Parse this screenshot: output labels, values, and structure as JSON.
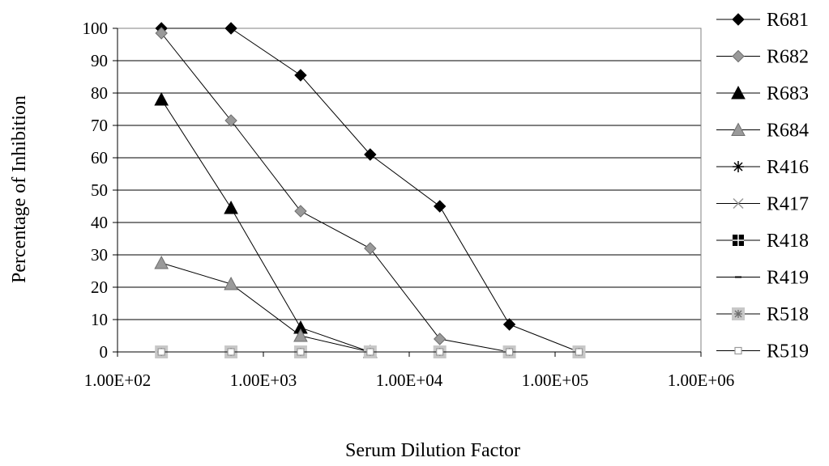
{
  "chart_data": {
    "type": "scatter",
    "title": "",
    "xlabel": "Serum Dilution Factor",
    "ylabel": "Percentage of Inhibition",
    "xscale": "log",
    "xlim": [
      100,
      1000000
    ],
    "ylim": [
      0,
      100
    ],
    "xticks": [
      "1.00E+02",
      "1.00E+03",
      "1.00E+04",
      "1.00E+05",
      "1.00E+06"
    ],
    "yticks": [
      "0",
      "10",
      "20",
      "30",
      "40",
      "50",
      "60",
      "70",
      "80",
      "90",
      "100"
    ],
    "grid": "horizontal",
    "legend_position": "right",
    "colors": {
      "black": "#000000",
      "gray": "#9a9a9a",
      "light_gray": "#c8c8c8",
      "white": "#ffffff"
    },
    "series": [
      {
        "name": "R681",
        "marker": "diamond",
        "color": "#000000",
        "x": [
          200,
          600,
          1800,
          5400,
          16200,
          48600,
          145800
        ],
        "y": [
          100,
          100,
          85.5,
          61,
          45,
          8.5,
          0
        ]
      },
      {
        "name": "R682",
        "marker": "diamond",
        "color": "#9a9a9a",
        "x": [
          200,
          600,
          1800,
          5400,
          16200,
          48600,
          145800
        ],
        "y": [
          98.5,
          71.5,
          43.5,
          32,
          4,
          0,
          0
        ]
      },
      {
        "name": "R683",
        "marker": "triangle",
        "color": "#000000",
        "x": [
          200,
          600,
          1800,
          5400
        ],
        "y": [
          78,
          44.5,
          7.5,
          0
        ]
      },
      {
        "name": "R684",
        "marker": "triangle",
        "color": "#9a9a9a",
        "x": [
          200,
          600,
          1800,
          5400
        ],
        "y": [
          27.5,
          21,
          5,
          0
        ]
      },
      {
        "name": "R416",
        "marker": "asterisk",
        "color": "#000000",
        "x": [
          200,
          600,
          1800,
          5400,
          16200,
          48600,
          145800
        ],
        "y": [
          0,
          0,
          0,
          0,
          0,
          0,
          0
        ]
      },
      {
        "name": "R417",
        "marker": "x",
        "color": "#9a9a9a",
        "x": [
          200,
          600,
          1800,
          5400,
          16200,
          48600,
          145800
        ],
        "y": [
          0,
          0,
          0,
          0,
          0,
          0,
          0
        ]
      },
      {
        "name": "R418",
        "marker": "plus-square",
        "color": "#000000",
        "x": [
          200,
          600,
          1800,
          5400,
          16200,
          48600,
          145800
        ],
        "y": [
          0,
          0,
          0,
          0,
          0,
          0,
          0
        ]
      },
      {
        "name": "R419",
        "marker": "dash",
        "color": "#000000",
        "x": [
          200,
          600,
          1800,
          5400,
          16200,
          48600,
          145800
        ],
        "y": [
          0,
          0,
          0,
          0,
          0,
          0,
          0
        ]
      },
      {
        "name": "R518",
        "marker": "star-square",
        "color": "#c8c8c8",
        "x": [
          200,
          600,
          1800,
          5400,
          16200,
          48600,
          145800
        ],
        "y": [
          0,
          0,
          0,
          0,
          0,
          0,
          0
        ]
      },
      {
        "name": "R519",
        "marker": "open-square",
        "color": "#9a9a9a",
        "x": [
          200,
          600,
          1800,
          5400,
          16200,
          48600,
          145800
        ],
        "y": [
          0,
          0,
          0,
          0,
          0,
          0,
          0
        ]
      }
    ]
  }
}
